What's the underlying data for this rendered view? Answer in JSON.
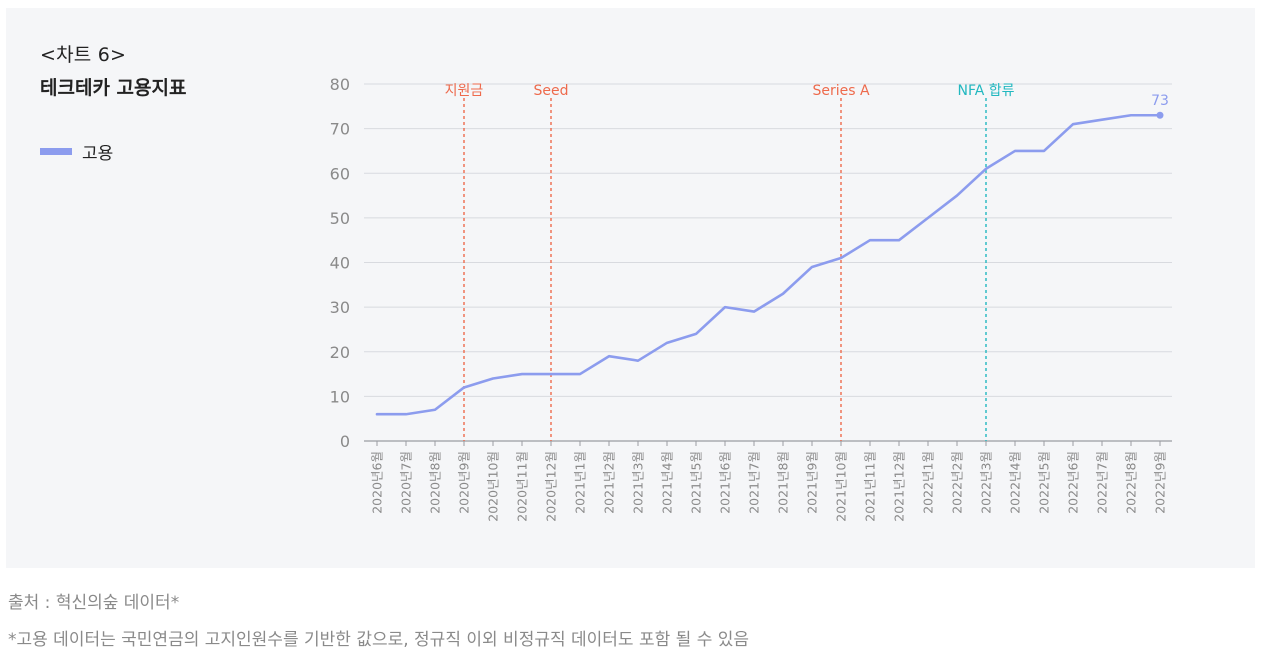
{
  "header": {
    "label": "<차트 6>",
    "title": "테크테카 고용지표"
  },
  "legend": {
    "label": "고용"
  },
  "colors": {
    "series": "#8c9cee",
    "event_red": "#ee6a4c",
    "event_teal": "#22b8c0",
    "grid": "#d8dadf",
    "axis_text": "#8a8a8a"
  },
  "chart_data": {
    "type": "line",
    "title": "테크테카 고용지표",
    "xlabel": "",
    "ylabel": "",
    "ylim": [
      0,
      80
    ],
    "yticks": [
      0,
      10,
      20,
      30,
      40,
      50,
      60,
      70,
      80
    ],
    "grid": true,
    "legend_position": "top-left",
    "categories": [
      "2020년6월",
      "2020년7월",
      "2020년8월",
      "2020년9월",
      "2020년10월",
      "2020년11월",
      "2020년12월",
      "2021년1월",
      "2021년2월",
      "2021년3월",
      "2021년4월",
      "2021년5월",
      "2021년6월",
      "2021년7월",
      "2021년8월",
      "2021년9월",
      "2021년10월",
      "2021년11월",
      "2021년12월",
      "2022년1월",
      "2022년2월",
      "2022년3월",
      "2022년4월",
      "2022년5월",
      "2022년6월",
      "2022년7월",
      "2022년8월",
      "2022년9월"
    ],
    "series": [
      {
        "name": "고용",
        "values": [
          6,
          6,
          7,
          12,
          14,
          15,
          15,
          15,
          19,
          18,
          22,
          24,
          30,
          29,
          33,
          39,
          41,
          45,
          45,
          50,
          55,
          61,
          65,
          65,
          71,
          72,
          73,
          73
        ]
      }
    ],
    "last_value_label": "73",
    "events": [
      {
        "label": "지원금",
        "category": "2020년9월",
        "color": "#ee6a4c"
      },
      {
        "label": "Seed",
        "category": "2020년12월",
        "color": "#ee6a4c"
      },
      {
        "label": "Series A",
        "category": "2021년10월",
        "color": "#ee6a4c"
      },
      {
        "label": "NFA 합류",
        "category": "2022년3월",
        "color": "#22b8c0"
      }
    ]
  },
  "footer": {
    "source": "출처 : 혁신의숲 데이터*",
    "note": "*고용 데이터는 국민연금의 고지인원수를 기반한 값으로, 정규직 이외 비정규직 데이터도 포함 될 수 있음"
  }
}
